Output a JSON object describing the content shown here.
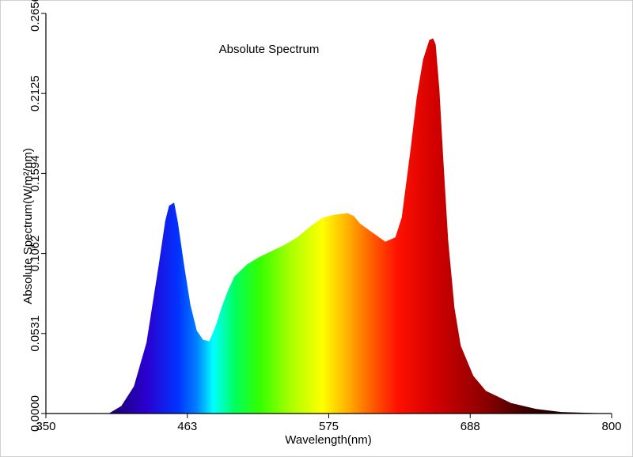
{
  "chart_data": {
    "type": "area",
    "title": "Absolute Spectrum",
    "xlabel": "Wavelength(nm)",
    "ylabel": "Absolute Spectrum(W/m²/nm)",
    "xlim": [
      350,
      800
    ],
    "ylim": [
      0,
      0.2656
    ],
    "x_ticks": [
      "350",
      "463",
      "575",
      "688",
      "800"
    ],
    "y_ticks": [
      "0.0000",
      "0.0531",
      "0.1062",
      "0.1594",
      "0.2125",
      "0.2656"
    ],
    "grid": false,
    "legend": "none",
    "fill": "visible-spectrum colour gradient",
    "series": [
      {
        "x": [
          350,
          400,
          410,
          420,
          430,
          440,
          445,
          448,
          452,
          455,
          460,
          465,
          470,
          475,
          480,
          485,
          490,
          495,
          500,
          510,
          520,
          530,
          540,
          550,
          560,
          570,
          580,
          590,
          595,
          600,
          610,
          620,
          628,
          633,
          640,
          645,
          650,
          655,
          658,
          660,
          663,
          666,
          670,
          675,
          680,
          690,
          700,
          720,
          740,
          760,
          800
        ],
        "values": [
          0.0,
          0.0,
          0.005,
          0.018,
          0.047,
          0.1,
          0.128,
          0.138,
          0.14,
          0.127,
          0.098,
          0.072,
          0.055,
          0.049,
          0.048,
          0.058,
          0.071,
          0.082,
          0.091,
          0.099,
          0.104,
          0.108,
          0.112,
          0.117,
          0.124,
          0.13,
          0.132,
          0.133,
          0.131,
          0.126,
          0.12,
          0.114,
          0.117,
          0.13,
          0.175,
          0.21,
          0.235,
          0.248,
          0.249,
          0.245,
          0.215,
          0.17,
          0.115,
          0.07,
          0.045,
          0.025,
          0.015,
          0.007,
          0.003,
          0.001,
          0.0
        ]
      }
    ]
  }
}
